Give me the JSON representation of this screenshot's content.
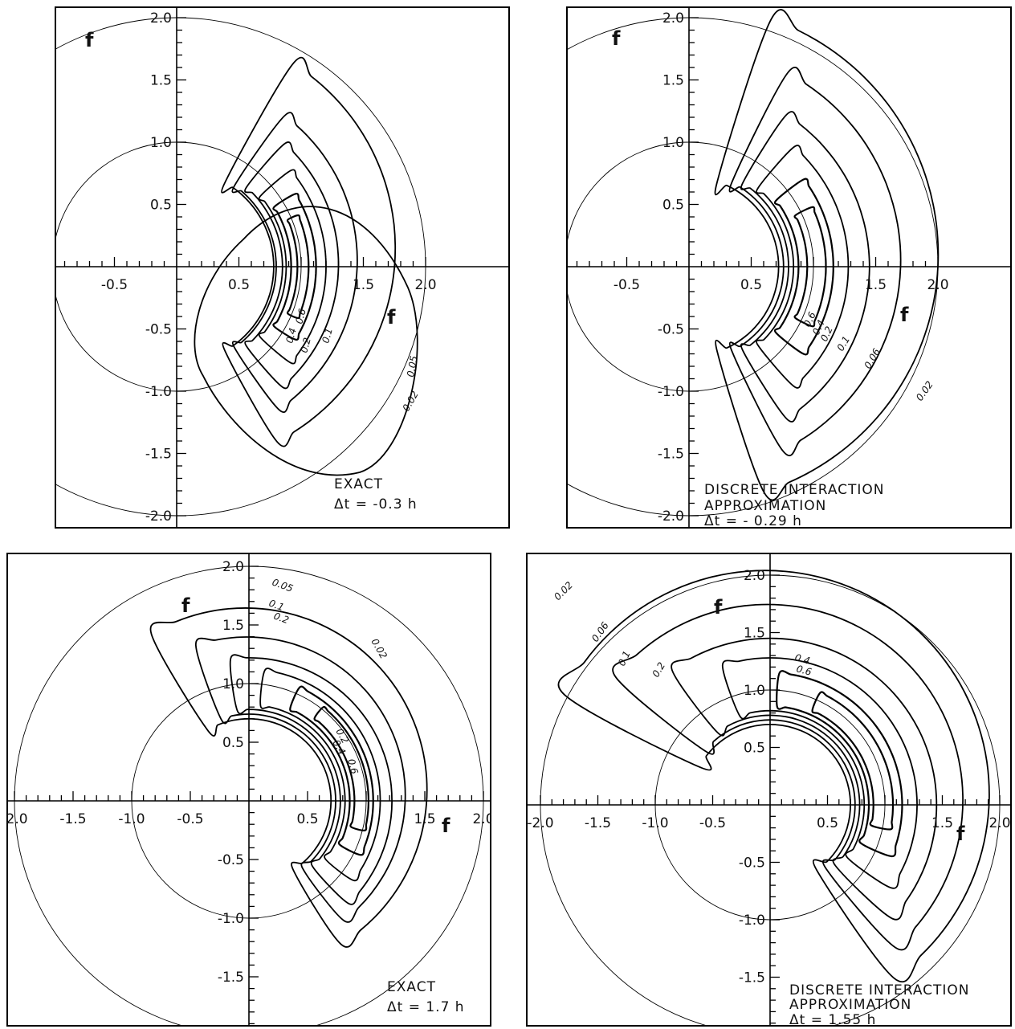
{
  "chart_data": [
    {
      "type": "contour",
      "caption_lines": [
        "EXACT",
        "Δt = -0.3 h"
      ],
      "axis_label_x": "f",
      "axis_label_y": "f",
      "xlim": [
        -1.0,
        2.05
      ],
      "ylim": [
        -2.1,
        2.05
      ],
      "x_ticks": [
        "-0.5",
        "0.5",
        "1.5",
        "2.0"
      ],
      "y_ticks": [
        "2.0",
        "1.5",
        "1.0",
        "0.5",
        "-0.5",
        "-1.0",
        "-1.5",
        "-2.0"
      ],
      "reference_circles_radius": [
        1.0,
        2.0
      ],
      "contour_levels": [
        "0.02",
        "0.05",
        "0.1",
        "0.2",
        "0.4",
        "0.6"
      ]
    },
    {
      "type": "contour",
      "caption_lines": [
        "DISCRETE INTERACTION",
        "APPROXIMATION",
        "Δt = - 0.29 h"
      ],
      "axis_label_x": "f",
      "axis_label_y": "f",
      "xlim": [
        -1.0,
        2.05
      ],
      "ylim": [
        -2.1,
        2.05
      ],
      "x_ticks": [
        "-0.5",
        "0.5",
        "1.5",
        "2.0"
      ],
      "y_ticks": [
        "2.0",
        "1.5",
        "1.0",
        "0.5",
        "-0.5",
        "-1.0",
        "-1.5",
        "-2.0"
      ],
      "reference_circles_radius": [
        1.0,
        2.0
      ],
      "contour_levels": [
        "0.02",
        "0.06",
        "0.1",
        "0.2",
        "0.4",
        "0.6"
      ]
    },
    {
      "type": "contour",
      "caption_lines": [
        "EXACT",
        "Δt = 1.7 h"
      ],
      "axis_label_x": "f",
      "axis_label_y": "f",
      "xlim": [
        -2.05,
        2.05
      ],
      "ylim": [
        -2.1,
        2.05
      ],
      "x_ticks": [
        "-2.0",
        "-1.5",
        "-1.0",
        "-0.5",
        "0.5",
        "1.5",
        "2.0"
      ],
      "y_ticks": [
        "2.0",
        "1.5",
        "1.0",
        "0.5",
        "-0.5",
        "-1.0",
        "-1.5",
        "-2.0"
      ],
      "reference_circles_radius": [
        1.0,
        2.0
      ],
      "contour_levels": [
        "0.02",
        "0.05",
        "0.1",
        "0.2",
        "0.4",
        "0.6"
      ]
    },
    {
      "type": "contour",
      "caption_lines": [
        "DISCRETE INTERACTION",
        "APPROXIMATION",
        "Δt = 1.55 h"
      ],
      "axis_label_x": "f",
      "axis_label_y": "f",
      "xlim": [
        -2.05,
        2.05
      ],
      "ylim": [
        -2.1,
        2.05
      ],
      "x_ticks": [
        "-2.0",
        "-1.5",
        "-1.0",
        "-0.5",
        "0.5",
        "1.5",
        "2.0"
      ],
      "y_ticks": [
        "2.0",
        "1.5",
        "1.0",
        "0.5",
        "-0.5",
        "-1.0",
        "-1.5",
        "-2.0"
      ],
      "reference_circles_radius": [
        1.0,
        2.0
      ],
      "contour_levels": [
        "0.02",
        "0.06",
        "0.1",
        "0.2",
        "0.4",
        "0.6"
      ]
    }
  ]
}
